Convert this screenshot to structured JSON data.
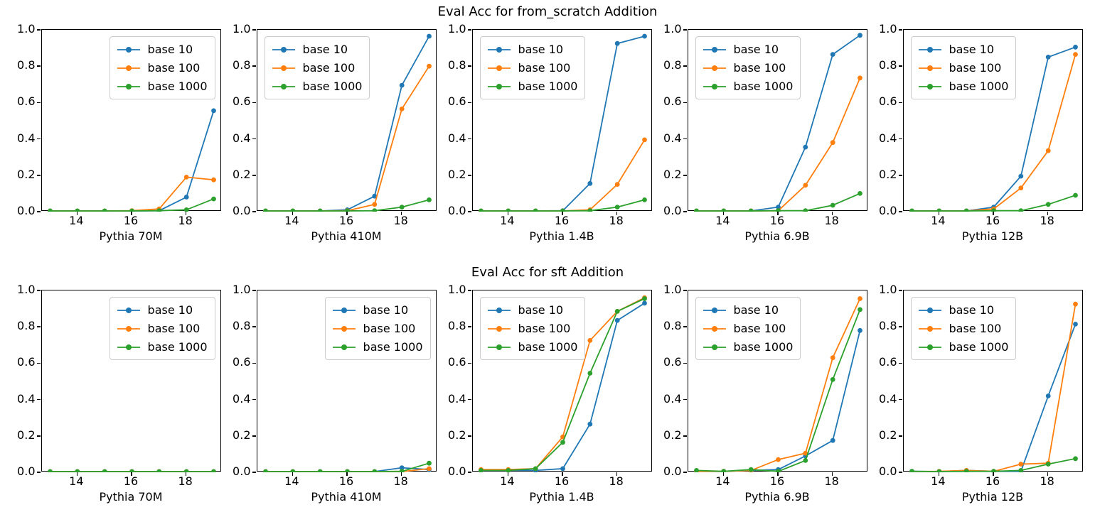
{
  "chart_data": {
    "type": "line",
    "x": [
      13,
      14,
      15,
      16,
      17,
      18,
      19
    ],
    "x_axis": {
      "ticks": [
        14,
        16,
        18
      ],
      "view_min": 12.7,
      "view_max": 19.3
    },
    "y_axis": {
      "ticks": [
        "0.0",
        "0.2",
        "0.4",
        "0.6",
        "0.8",
        "1.0"
      ],
      "min": 0,
      "max": 1
    },
    "grid": false,
    "series_meta": [
      {
        "name": "base 10",
        "color": "#1f77b4"
      },
      {
        "name": "base 100",
        "color": "#ff7f0e"
      },
      {
        "name": "base 1000",
        "color": "#2ca02c"
      }
    ],
    "rows": [
      {
        "title": "Eval Acc for from_scratch Addition",
        "plots": [
          {
            "xlabel": "Pythia 70M",
            "legend_loc": "right",
            "series": [
              {
                "name": "base 10",
                "values": [
                  0.004,
                  0.004,
                  0.004,
                  0.004,
                  0.005,
                  0.08,
                  0.555
                ]
              },
              {
                "name": "base 100",
                "values": [
                  0.004,
                  0.004,
                  0.004,
                  0.005,
                  0.015,
                  0.19,
                  0.175
                ]
              },
              {
                "name": "base 1000",
                "values": [
                  0.004,
                  0.004,
                  0.004,
                  0.004,
                  0.005,
                  0.01,
                  0.07
                ]
              }
            ]
          },
          {
            "xlabel": "Pythia 410M",
            "legend_loc": "left",
            "series": [
              {
                "name": "base 10",
                "values": [
                  0.004,
                  0.004,
                  0.004,
                  0.01,
                  0.085,
                  0.695,
                  0.965
                ]
              },
              {
                "name": "base 100",
                "values": [
                  0.004,
                  0.004,
                  0.004,
                  0.005,
                  0.04,
                  0.565,
                  0.8
                ]
              },
              {
                "name": "base 1000",
                "values": [
                  0.004,
                  0.004,
                  0.004,
                  0.004,
                  0.005,
                  0.025,
                  0.065
                ]
              }
            ]
          },
          {
            "xlabel": "Pythia 1.4B",
            "legend_loc": "left",
            "series": [
              {
                "name": "base 10",
                "values": [
                  0.004,
                  0.004,
                  0.004,
                  0.005,
                  0.155,
                  0.925,
                  0.965
                ]
              },
              {
                "name": "base 100",
                "values": [
                  0.004,
                  0.004,
                  0.004,
                  0.004,
                  0.01,
                  0.15,
                  0.395
                ]
              },
              {
                "name": "base 1000",
                "values": [
                  0.004,
                  0.004,
                  0.004,
                  0.004,
                  0.005,
                  0.025,
                  0.065
                ]
              }
            ]
          },
          {
            "xlabel": "Pythia 6.9B",
            "legend_loc": "left",
            "series": [
              {
                "name": "base 10",
                "values": [
                  0.004,
                  0.004,
                  0.004,
                  0.025,
                  0.355,
                  0.865,
                  0.97
                ]
              },
              {
                "name": "base 100",
                "values": [
                  0.004,
                  0.004,
                  0.004,
                  0.005,
                  0.145,
                  0.38,
                  0.735
                ]
              },
              {
                "name": "base 1000",
                "values": [
                  0.004,
                  0.004,
                  0.004,
                  0.005,
                  0.005,
                  0.035,
                  0.1
                ]
              }
            ]
          },
          {
            "xlabel": "Pythia 12B",
            "legend_loc": "left",
            "series": [
              {
                "name": "base 10",
                "values": [
                  0.004,
                  0.004,
                  0.004,
                  0.025,
                  0.195,
                  0.85,
                  0.905
                ]
              },
              {
                "name": "base 100",
                "values": [
                  0.004,
                  0.004,
                  0.004,
                  0.015,
                  0.13,
                  0.335,
                  0.865
                ]
              },
              {
                "name": "base 1000",
                "values": [
                  0.004,
                  0.004,
                  0.004,
                  0.005,
                  0.005,
                  0.04,
                  0.09
                ]
              }
            ]
          }
        ]
      },
      {
        "title": "Eval Acc for sft Addition",
        "plots": [
          {
            "xlabel": "Pythia 70M",
            "legend_loc": "right",
            "series": [
              {
                "name": "base 10",
                "values": [
                  0.004,
                  0.004,
                  0.004,
                  0.004,
                  0.004,
                  0.004,
                  0.004
                ]
              },
              {
                "name": "base 100",
                "values": [
                  0.004,
                  0.004,
                  0.004,
                  0.004,
                  0.004,
                  0.004,
                  0.004
                ]
              },
              {
                "name": "base 1000",
                "values": [
                  0.004,
                  0.004,
                  0.004,
                  0.004,
                  0.004,
                  0.004,
                  0.004
                ]
              }
            ]
          },
          {
            "xlabel": "Pythia 410M",
            "legend_loc": "right",
            "series": [
              {
                "name": "base 10",
                "values": [
                  0.004,
                  0.004,
                  0.004,
                  0.004,
                  0.004,
                  0.025,
                  0.015
                ]
              },
              {
                "name": "base 100",
                "values": [
                  0.004,
                  0.004,
                  0.004,
                  0.004,
                  0.004,
                  0.004,
                  0.02
                ]
              },
              {
                "name": "base 1000",
                "values": [
                  0.004,
                  0.004,
                  0.004,
                  0.004,
                  0.004,
                  0.005,
                  0.05
                ]
              }
            ]
          },
          {
            "xlabel": "Pythia 1.4B",
            "legend_loc": "left",
            "series": [
              {
                "name": "base 10",
                "values": [
                  0.01,
                  0.01,
                  0.01,
                  0.02,
                  0.265,
                  0.835,
                  0.93
                ]
              },
              {
                "name": "base 100",
                "values": [
                  0.015,
                  0.015,
                  0.02,
                  0.195,
                  0.725,
                  0.885,
                  0.96
                ]
              },
              {
                "name": "base 1000",
                "values": [
                  0.01,
                  0.01,
                  0.02,
                  0.165,
                  0.545,
                  0.885,
                  0.955
                ]
              }
            ]
          },
          {
            "xlabel": "Pythia 6.9B",
            "legend_loc": "left",
            "series": [
              {
                "name": "base 10",
                "values": [
                  0.005,
                  0.005,
                  0.01,
                  0.015,
                  0.09,
                  0.175,
                  0.78
                ]
              },
              {
                "name": "base 100",
                "values": [
                  0.005,
                  0.005,
                  0.01,
                  0.07,
                  0.105,
                  0.63,
                  0.955
                ]
              },
              {
                "name": "base 1000",
                "values": [
                  0.01,
                  0.005,
                  0.015,
                  0.005,
                  0.065,
                  0.51,
                  0.895
                ]
              }
            ]
          },
          {
            "xlabel": "Pythia 12B",
            "legend_loc": "left",
            "series": [
              {
                "name": "base 10",
                "values": [
                  0.005,
                  0.004,
                  0.01,
                  0.005,
                  0.005,
                  0.42,
                  0.815
                ]
              },
              {
                "name": "base 100",
                "values": [
                  0.004,
                  0.005,
                  0.01,
                  0.005,
                  0.045,
                  0.05,
                  0.925
                ]
              },
              {
                "name": "base 1000",
                "values": [
                  0.005,
                  0.004,
                  0.005,
                  0.005,
                  0.01,
                  0.045,
                  0.075
                ]
              }
            ]
          }
        ]
      }
    ]
  }
}
